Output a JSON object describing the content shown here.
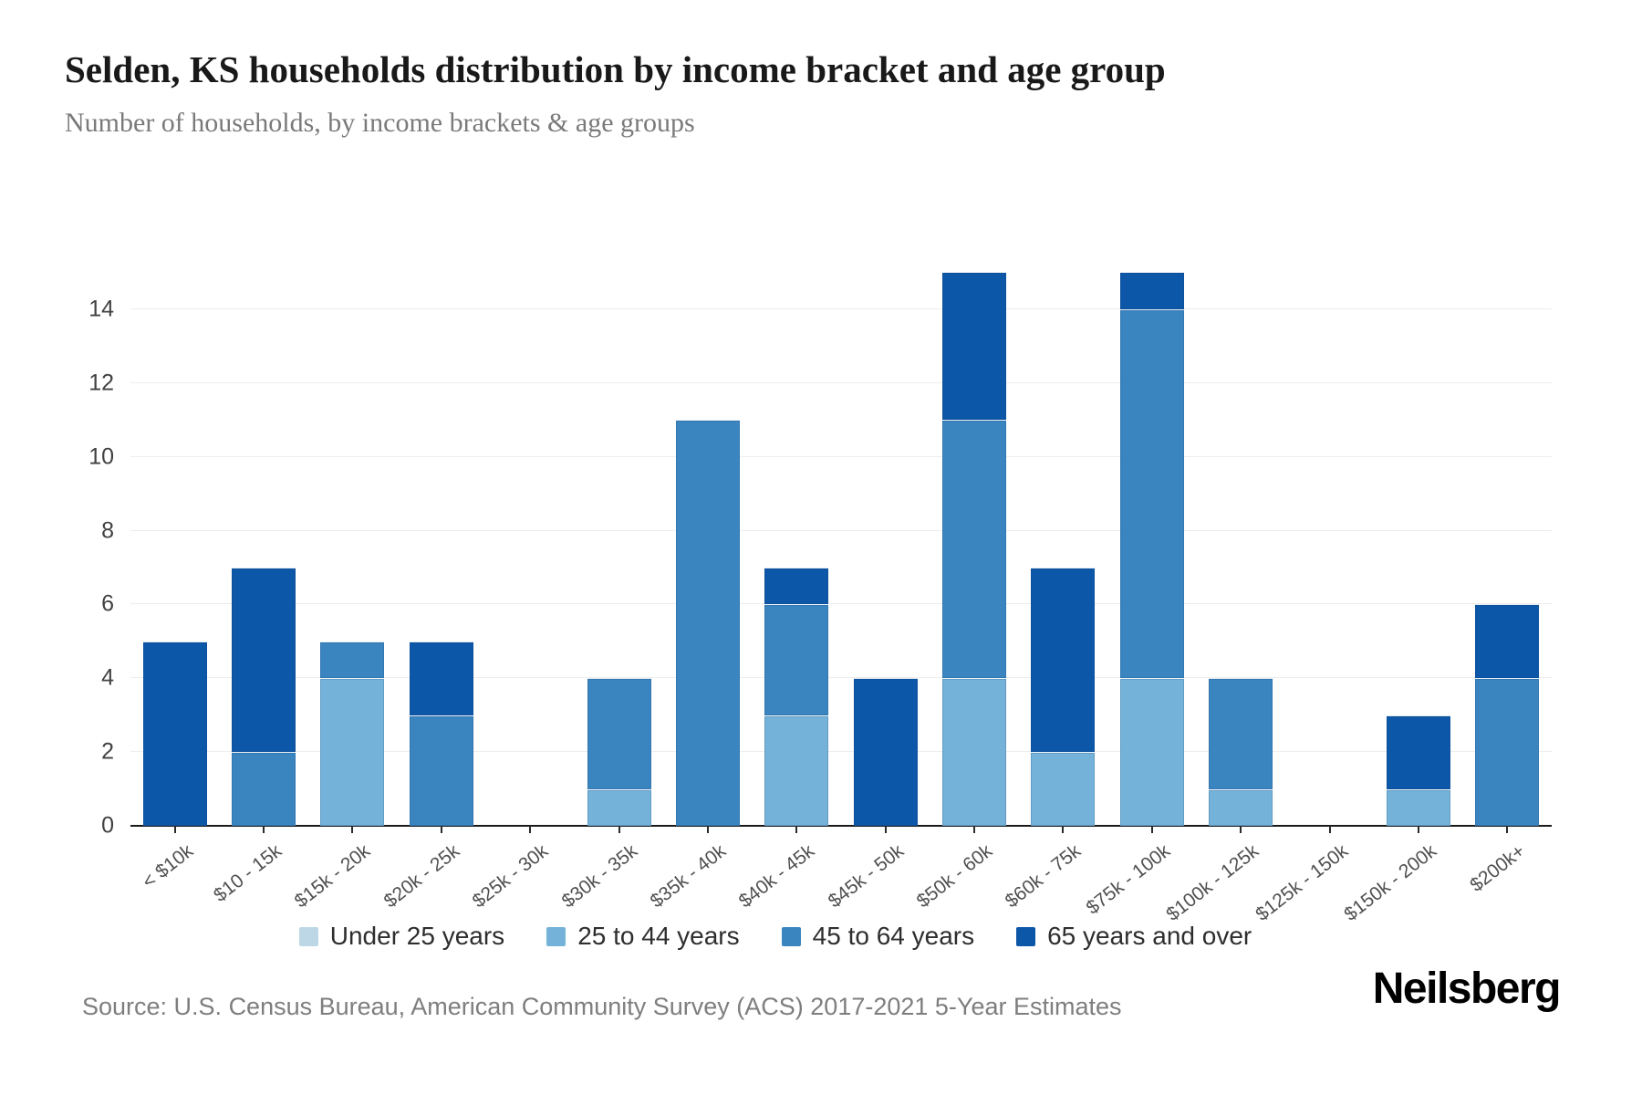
{
  "header": {
    "title": "Selden, KS households distribution by income bracket and age group",
    "subtitle": "Number of households, by income brackets & age groups"
  },
  "footer": {
    "source": "Source: U.S. Census Bureau, American Community Survey (ACS) 2017-2021 5-Year Estimates",
    "logo": "Neilsberg"
  },
  "colors": {
    "axis_line": "#1a1a1a",
    "gridline": "#ededed",
    "under_25": "#bdd7e7",
    "age_25_44": "#74b2da",
    "age_45_64": "#3a85c0",
    "age_65_over": "#0d57a8"
  },
  "chart_data": {
    "type": "bar",
    "stacked": true,
    "title": "Selden, KS households distribution by income bracket and age group",
    "subtitle": "Number of households, by income brackets & age groups",
    "xlabel": "",
    "ylabel": "",
    "y_ticks": [
      0,
      2,
      4,
      6,
      8,
      10,
      12,
      14
    ],
    "y_max": 16,
    "grid": "horizontal",
    "legend_position": "bottom",
    "categories": [
      "< $10k",
      "$10 - 15k",
      "$15k - 20k",
      "$20k - 25k",
      "$25k - 30k",
      "$30k - 35k",
      "$35k - 40k",
      "$40k - 45k",
      "$45k - 50k",
      "$50k - 60k",
      "$60k - 75k",
      "$75k - 100k",
      "$100k - 125k",
      "$125k - 150k",
      "$150k - 200k",
      "$200k+"
    ],
    "series": [
      {
        "name": "Under 25 years",
        "color": "#bdd7e7",
        "values": [
          0,
          0,
          0,
          0,
          0,
          0,
          0,
          0,
          0,
          0,
          0,
          0,
          0,
          0,
          0,
          0
        ]
      },
      {
        "name": "25 to 44 years",
        "color": "#74b2da",
        "values": [
          0,
          0,
          4,
          0,
          0,
          1,
          0,
          3,
          0,
          4,
          2,
          4,
          1,
          0,
          1,
          0
        ]
      },
      {
        "name": "45 to 64 years",
        "color": "#3a85c0",
        "values": [
          0,
          2,
          1,
          3,
          0,
          3,
          11,
          3,
          0,
          7,
          0,
          10,
          3,
          0,
          0,
          4
        ]
      },
      {
        "name": "65 years and over",
        "color": "#0d57a8",
        "values": [
          5,
          5,
          0,
          2,
          0,
          0,
          0,
          1,
          4,
          4,
          5,
          1,
          0,
          0,
          2,
          2
        ]
      }
    ],
    "totals": [
      5,
      7,
      5,
      5,
      0,
      4,
      11,
      7,
      4,
      15,
      7,
      15,
      4,
      0,
      3,
      6
    ]
  }
}
